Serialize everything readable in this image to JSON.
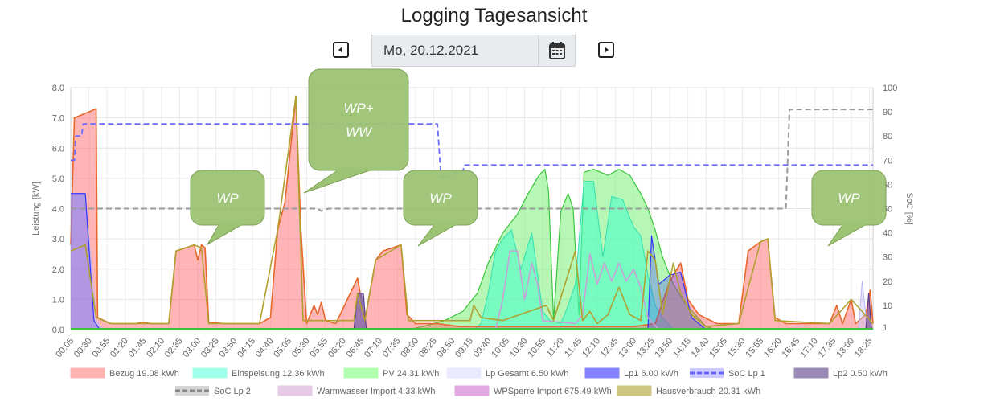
{
  "page": {
    "title": "Logging Tagesansicht",
    "date_value": "Mo, 20.12.2021",
    "prev_icon": "caret-left-icon",
    "next_icon": "caret-right-icon",
    "calendar_icon": "calendar-icon"
  },
  "chart_data": {
    "type": "area",
    "ylabel_left": "Leistung [kW]",
    "ylabel_right": "SoC [%]",
    "ylim_left": [
      0,
      8
    ],
    "ylim_right": [
      0,
      100
    ],
    "yticks_left": [
      "0.0",
      "1.0",
      "2.0",
      "3.0",
      "4.0",
      "5.0",
      "6.0",
      "7.0",
      "8.0"
    ],
    "yticks_right": [
      "1",
      "10",
      "20",
      "30",
      "40",
      "50",
      "60",
      "70",
      "80",
      "90",
      "100"
    ],
    "yticks_right_values": [
      1,
      10,
      20,
      30,
      40,
      50,
      60,
      70,
      80,
      90,
      100
    ],
    "x_start_minutes": 5,
    "x_end_minutes": 1110,
    "x_tick_labels": [
      "00:05",
      "00:30",
      "00:55",
      "01:20",
      "01:45",
      "02:10",
      "02:35",
      "03:00",
      "03:25",
      "03:50",
      "04:15",
      "04:40",
      "05:05",
      "05:30",
      "05:55",
      "06:20",
      "06:45",
      "07:10",
      "07:35",
      "08:00",
      "08:25",
      "08:50",
      "09:15",
      "09:40",
      "10:05",
      "10:30",
      "10:55",
      "11:20",
      "11:45",
      "12:10",
      "12:35",
      "13:00",
      "13:25",
      "13:50",
      "14:15",
      "14:40",
      "15:05",
      "15:30",
      "15:55",
      "16:20",
      "16:45",
      "17:10",
      "17:35",
      "18:00",
      "18:25"
    ],
    "grid": true,
    "legend_position": "bottom",
    "legend": [
      {
        "label": "Bezug 19.08 kWh",
        "color": "#ff7f7f"
      },
      {
        "label": "Einspeisung 12.36 kWh",
        "color": "#66ffdd"
      },
      {
        "label": "PV 24.31 kWh",
        "color": "#7fff7f"
      },
      {
        "label": "Lp Gesamt 6.50 kWh",
        "color": "#dcdcff"
      },
      {
        "label": "Lp1 6.00 kWh",
        "color": "#3333ff"
      },
      {
        "label": "SoC Lp 1",
        "color": "#6666ff"
      },
      {
        "label": "Lp2 0.50 kWh",
        "color": "#5a3d8a"
      },
      {
        "label": "SoC Lp 2",
        "color": "#888888"
      },
      {
        "label": "Warmwasser Import 4.33 kWh",
        "color": "#d8a8d8"
      },
      {
        "label": "WPSperre Import 675.49 kWh",
        "color": "#d070d0"
      },
      {
        "label": "Hausverbrauch 20.31 kWh",
        "color": "#b0a030"
      }
    ],
    "series": [
      {
        "name": "Bezug 19.08 kWh",
        "unit": "kW",
        "points": [
          [
            5,
            2.8
          ],
          [
            10,
            7.0
          ],
          [
            30,
            7.2
          ],
          [
            40,
            7.3
          ],
          [
            42,
            0.4
          ],
          [
            60,
            0.2
          ],
          [
            95,
            0.2
          ],
          [
            105,
            0.25
          ],
          [
            115,
            0.2
          ],
          [
            140,
            0.2
          ],
          [
            150,
            2.6
          ],
          [
            175,
            2.8
          ],
          [
            180,
            2.3
          ],
          [
            185,
            2.8
          ],
          [
            190,
            2.7
          ],
          [
            195,
            0.25
          ],
          [
            215,
            0.2
          ],
          [
            240,
            0.2
          ],
          [
            265,
            0.2
          ],
          [
            280,
            0.4
          ],
          [
            290,
            3.3
          ],
          [
            300,
            4.2
          ],
          [
            315,
            7.7
          ],
          [
            322,
            3.3
          ],
          [
            330,
            0.2
          ],
          [
            340,
            0.8
          ],
          [
            345,
            0.5
          ],
          [
            350,
            0.9
          ],
          [
            356,
            0.3
          ],
          [
            370,
            0.2
          ],
          [
            400,
            1.7
          ],
          [
            410,
            0.3
          ],
          [
            425,
            2.3
          ],
          [
            435,
            2.6
          ],
          [
            460,
            2.8
          ],
          [
            468,
            0.5
          ],
          [
            480,
            0.2
          ],
          [
            510,
            0.2
          ],
          [
            540,
            0.1
          ],
          [
            600,
            0.1
          ],
          [
            700,
            0.1
          ],
          [
            780,
            0.1
          ],
          [
            810,
            0.2
          ],
          [
            830,
            1.6
          ],
          [
            845,
            2.2
          ],
          [
            855,
            1.0
          ],
          [
            870,
            0.5
          ],
          [
            895,
            0.2
          ],
          [
            925,
            0.2
          ],
          [
            938,
            2.6
          ],
          [
            955,
            2.9
          ],
          [
            965,
            3.0
          ],
          [
            975,
            0.4
          ],
          [
            990,
            0.2
          ],
          [
            1050,
            0.2
          ],
          [
            1060,
            0.8
          ],
          [
            1068,
            0.2
          ],
          [
            1080,
            1.0
          ],
          [
            1086,
            0.2
          ],
          [
            1100,
            0.5
          ],
          [
            1106,
            1.3
          ],
          [
            1110,
            0.2
          ]
        ]
      },
      {
        "name": "Einspeisung 12.36 kWh",
        "unit": "kW",
        "points": [
          [
            5,
            0
          ],
          [
            560,
            0
          ],
          [
            570,
            0.2
          ],
          [
            580,
            1.2
          ],
          [
            590,
            2.6
          ],
          [
            600,
            3.0
          ],
          [
            612,
            3.3
          ],
          [
            625,
            2.0
          ],
          [
            640,
            3.2
          ],
          [
            655,
            0.6
          ],
          [
            665,
            0.3
          ],
          [
            680,
            0.2
          ],
          [
            690,
            0.8
          ],
          [
            700,
            1.5
          ],
          [
            712,
            4.9
          ],
          [
            725,
            4.9
          ],
          [
            738,
            2.4
          ],
          [
            750,
            4.4
          ],
          [
            765,
            4.3
          ],
          [
            780,
            3.4
          ],
          [
            790,
            3.1
          ],
          [
            800,
            1.8
          ],
          [
            810,
            0.8
          ],
          [
            820,
            0.4
          ],
          [
            835,
            0
          ]
        ]
      },
      {
        "name": "PV 24.31 kWh",
        "unit": "kW",
        "points": [
          [
            5,
            0
          ],
          [
            470,
            0
          ],
          [
            490,
            0.1
          ],
          [
            520,
            0.3
          ],
          [
            545,
            0.6
          ],
          [
            565,
            1.2
          ],
          [
            580,
            2.2
          ],
          [
            600,
            3.2
          ],
          [
            620,
            3.8
          ],
          [
            635,
            4.5
          ],
          [
            650,
            5.1
          ],
          [
            658,
            5.3
          ],
          [
            663,
            4.6
          ],
          [
            670,
            0.3
          ],
          [
            680,
            3.9
          ],
          [
            690,
            4.5
          ],
          [
            697,
            4.0
          ],
          [
            705,
            0.5
          ],
          [
            712,
            5.2
          ],
          [
            725,
            5.3
          ],
          [
            745,
            5.1
          ],
          [
            760,
            5.3
          ],
          [
            775,
            5.1
          ],
          [
            790,
            4.5
          ],
          [
            800,
            4.0
          ],
          [
            810,
            3.3
          ],
          [
            820,
            2.4
          ],
          [
            835,
            1.5
          ],
          [
            850,
            0.9
          ],
          [
            865,
            0.5
          ],
          [
            880,
            0.1
          ],
          [
            895,
            0
          ],
          [
            1110,
            0
          ]
        ]
      },
      {
        "name": "Lp Gesamt 6.50 kWh",
        "unit": "kW",
        "points": [
          [
            5,
            4.5
          ],
          [
            25,
            4.5
          ],
          [
            40,
            0.3
          ],
          [
            50,
            0
          ],
          [
            395,
            0
          ],
          [
            400,
            1.2
          ],
          [
            405,
            1.2
          ],
          [
            410,
            0
          ],
          [
            1090,
            0
          ],
          [
            1095,
            1.6
          ],
          [
            1100,
            0.5
          ],
          [
            1110,
            0
          ]
        ]
      },
      {
        "name": "Lp1 6.00 kWh",
        "unit": "kW",
        "points": [
          [
            5,
            4.5
          ],
          [
            25,
            4.5
          ],
          [
            37,
            0.3
          ],
          [
            45,
            0
          ],
          [
            800,
            0
          ],
          [
            805,
            3.1
          ],
          [
            815,
            1.5
          ],
          [
            830,
            1.8
          ],
          [
            845,
            1.9
          ],
          [
            860,
            0.4
          ],
          [
            880,
            0
          ],
          [
            1100,
            0
          ]
        ]
      },
      {
        "name": "Lp2 0.50 kWh",
        "unit": "kW",
        "points": [
          [
            5,
            0
          ],
          [
            395,
            0
          ],
          [
            400,
            1.2
          ],
          [
            408,
            1.2
          ],
          [
            412,
            0
          ],
          [
            1100,
            0
          ],
          [
            1104,
            1.2
          ],
          [
            1108,
            0
          ]
        ]
      },
      {
        "name": "Warmwasser Import 4.33 kWh",
        "unit": "kW",
        "points": [
          [
            5,
            0
          ],
          [
            590,
            0
          ],
          [
            600,
            1.0
          ],
          [
            610,
            2.6
          ],
          [
            620,
            2.6
          ],
          [
            630,
            1.0
          ],
          [
            640,
            2.2
          ],
          [
            648,
            1.5
          ],
          [
            655,
            0.3
          ],
          [
            700,
            0.2
          ],
          [
            710,
            0.5
          ],
          [
            720,
            2.5
          ],
          [
            730,
            1.5
          ],
          [
            740,
            2.2
          ],
          [
            750,
            1.6
          ],
          [
            760,
            2.2
          ],
          [
            770,
            1.6
          ],
          [
            780,
            2.0
          ],
          [
            790,
            1.4
          ],
          [
            800,
            0.4
          ],
          [
            815,
            0
          ]
        ]
      },
      {
        "name": "WPSperre Import 675.49 kWh",
        "unit": "kW",
        "points": [
          [
            5,
            0
          ],
          [
            1110,
            0
          ]
        ]
      },
      {
        "name": "Hausverbrauch 20.31 kWh",
        "unit": "kW",
        "points": [
          [
            5,
            2.6
          ],
          [
            25,
            2.8
          ],
          [
            40,
            0.4
          ],
          [
            60,
            0.2
          ],
          [
            140,
            0.2
          ],
          [
            150,
            2.6
          ],
          [
            175,
            2.8
          ],
          [
            185,
            2.7
          ],
          [
            195,
            0.2
          ],
          [
            265,
            0.2
          ],
          [
            290,
            3.3
          ],
          [
            315,
            7.7
          ],
          [
            325,
            0.3
          ],
          [
            395,
            0.3
          ],
          [
            400,
            1.2
          ],
          [
            410,
            0.3
          ],
          [
            425,
            2.3
          ],
          [
            460,
            2.8
          ],
          [
            470,
            0.3
          ],
          [
            555,
            0.3
          ],
          [
            560,
            0.8
          ],
          [
            570,
            0.4
          ],
          [
            600,
            0.3
          ],
          [
            660,
            0.8
          ],
          [
            670,
            0.3
          ],
          [
            700,
            2.6
          ],
          [
            710,
            0.3
          ],
          [
            720,
            0.6
          ],
          [
            730,
            0.2
          ],
          [
            745,
            0.5
          ],
          [
            760,
            1.4
          ],
          [
            775,
            0.5
          ],
          [
            790,
            0.3
          ],
          [
            800,
            2.6
          ],
          [
            810,
            2.3
          ],
          [
            820,
            0.5
          ],
          [
            835,
            2.2
          ],
          [
            845,
            1.2
          ],
          [
            860,
            0.5
          ],
          [
            880,
            0.1
          ],
          [
            925,
            0.2
          ],
          [
            955,
            2.9
          ],
          [
            965,
            3.0
          ],
          [
            975,
            0.3
          ],
          [
            1050,
            0.2
          ],
          [
            1080,
            1.0
          ],
          [
            1110,
            0.2
          ]
        ]
      },
      {
        "name": "SoC Lp 1",
        "unit": "%",
        "points": [
          [
            5,
            70
          ],
          [
            10,
            70
          ],
          [
            12,
            80
          ],
          [
            20,
            80
          ],
          [
            22,
            85
          ],
          [
            510,
            85
          ],
          [
            515,
            63
          ],
          [
            530,
            63
          ],
          [
            532,
            65
          ],
          [
            545,
            65
          ],
          [
            547,
            68
          ],
          [
            1110,
            68
          ]
        ]
      },
      {
        "name": "SoC Lp 2",
        "unit": "%",
        "points": [
          [
            5,
            50
          ],
          [
            345,
            50
          ],
          [
            350,
            49
          ],
          [
            360,
            50
          ],
          [
            990,
            50
          ],
          [
            995,
            91
          ],
          [
            1110,
            91
          ]
        ]
      }
    ],
    "annotations": [
      {
        "text": "WP"
      },
      {
        "text": "WP+ WW"
      },
      {
        "text": "WP"
      },
      {
        "text": "WP"
      }
    ]
  }
}
